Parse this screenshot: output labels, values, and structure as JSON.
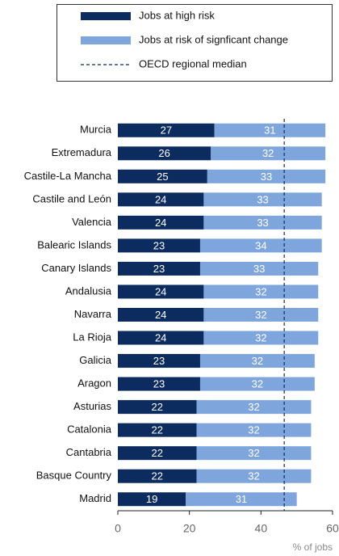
{
  "chart_data": {
    "type": "stacked_barh",
    "categories": [
      "Murcia",
      "Extremadura",
      "Castile-La Mancha",
      "Castile and León",
      "Valencia",
      "Balearic Islands",
      "Canary Islands",
      "Andalusia",
      "Navarra",
      "La Rioja",
      "Galicia",
      "Aragon",
      "Asturias",
      "Catalonia",
      "Cantabria",
      "Basque Country",
      "Madrid"
    ],
    "series": [
      {
        "name": "Jobs at high risk",
        "color": "#0c2b5f",
        "values": [
          27,
          26,
          25,
          24,
          24,
          23,
          23,
          24,
          24,
          24,
          23,
          23,
          22,
          22,
          22,
          22,
          19
        ]
      },
      {
        "name": "Jobs at risk of signficant change",
        "color": "#7ea6dc",
        "values": [
          31,
          32,
          33,
          33,
          33,
          34,
          33,
          32,
          32,
          32,
          32,
          32,
          32,
          32,
          32,
          32,
          31
        ]
      }
    ],
    "reference_line": {
      "name": "OECD regional median",
      "value": 46.5,
      "color": "#0c2b5f"
    },
    "xlabel": "% of jobs",
    "xlim": [
      0,
      60
    ],
    "xticks": [
      0,
      20,
      40,
      60
    ]
  }
}
